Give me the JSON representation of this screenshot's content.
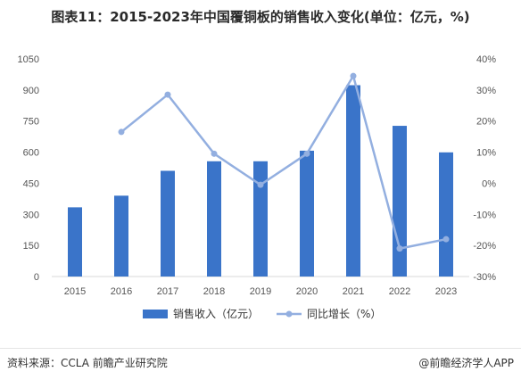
{
  "title": "图表11：2015-2023年中国覆铜板的销售收入变化(单位：亿元，%)",
  "source": "资料来源：CCLA 前瞻产业研究院",
  "credit": "@前瞻经济学人APP",
  "colors": {
    "bar": "#3a74c9",
    "line": "#93afe0",
    "axis": "#d9d9d9"
  },
  "chart_data": {
    "type": "bar",
    "categories": [
      "2015",
      "2016",
      "2017",
      "2018",
      "2019",
      "2020",
      "2021",
      "2022",
      "2023"
    ],
    "series": [
      {
        "name": "销售收入（亿元）",
        "type": "bar",
        "axis": "left",
        "values": [
          334,
          390,
          510,
          556,
          556,
          607,
          923,
          727,
          599
        ]
      },
      {
        "name": "同比增长（%）",
        "type": "line",
        "axis": "right",
        "values": [
          null,
          16.5,
          28.5,
          9.5,
          -0.5,
          9.5,
          34.5,
          -21.0,
          -18.0
        ]
      }
    ],
    "y_left": {
      "min": 0,
      "max": 1050,
      "ticks": [
        0,
        150,
        300,
        450,
        600,
        750,
        900,
        1050
      ],
      "tick_labels": [
        "0",
        "150",
        "300",
        "450",
        "600",
        "750",
        "900",
        "1050"
      ]
    },
    "y_right": {
      "min": -30,
      "max": 40,
      "ticks": [
        -30,
        -20,
        -10,
        0,
        10,
        20,
        30,
        40
      ],
      "tick_labels": [
        "-30%",
        "-20%",
        "-10%",
        "0%",
        "10%",
        "20%",
        "30%",
        "40%"
      ]
    },
    "legend_position": "bottom",
    "grid": false
  }
}
